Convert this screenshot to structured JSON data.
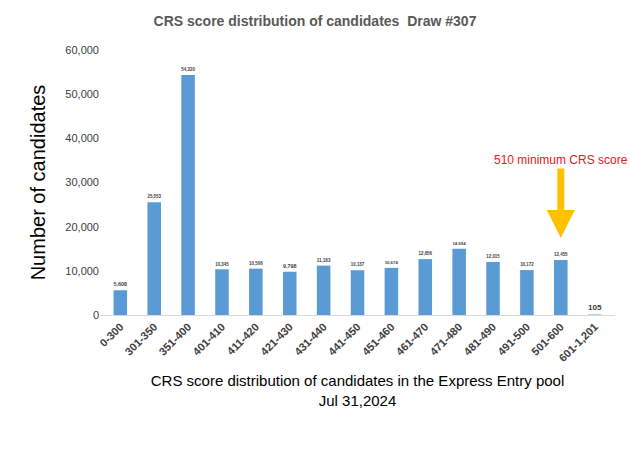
{
  "chart_data": {
    "type": "bar",
    "title": "CRS score distribution of candidates  Draw #307",
    "y_label": "Number of candidates",
    "x_label": [
      "CRS score distribution of candidates in the Express Entry pool",
      "Jul 31,2024"
    ],
    "categories": [
      "0-300",
      "301-350",
      "351-400",
      "401-410",
      "411-420",
      "421-430",
      "431-440",
      "441-450",
      "451-460",
      "461-470",
      "471-480",
      "481-490",
      "491-500",
      "501-600",
      "601-1,201"
    ],
    "values": [
      5608,
      25553,
      54320,
      10345,
      10506,
      9798,
      11183,
      10137,
      10674,
      12656,
      14994,
      12015,
      10172,
      12455,
      105
    ],
    "value_labels": [
      "5,608",
      "25,553",
      "54,320",
      "10,345",
      "10,506",
      "9,798",
      "11,183",
      "10,137",
      "10,674",
      "12,656",
      "14,994",
      "12,015",
      "10,172",
      "12,455",
      "105"
    ],
    "data_labels": true,
    "color": "#5b9bd5",
    "ylim": [
      0,
      60000
    ],
    "yticks": [
      0,
      {
        "value": 10000,
        "label": "10,000"
      },
      {
        "value": 20000,
        "label": "20,000"
      },
      {
        "value": 30000,
        "label": "30,000"
      },
      {
        "value": 40000,
        "label": "40,000"
      },
      {
        "value": 50000,
        "label": "50,000"
      },
      {
        "value": 60000,
        "label": "60,000"
      }
    ],
    "grid": false,
    "annotations": [
      {
        "text": "510 minimum CRS score",
        "category": "501-600",
        "color": "#e02020",
        "arrow_color": "#ffc000"
      }
    ]
  }
}
